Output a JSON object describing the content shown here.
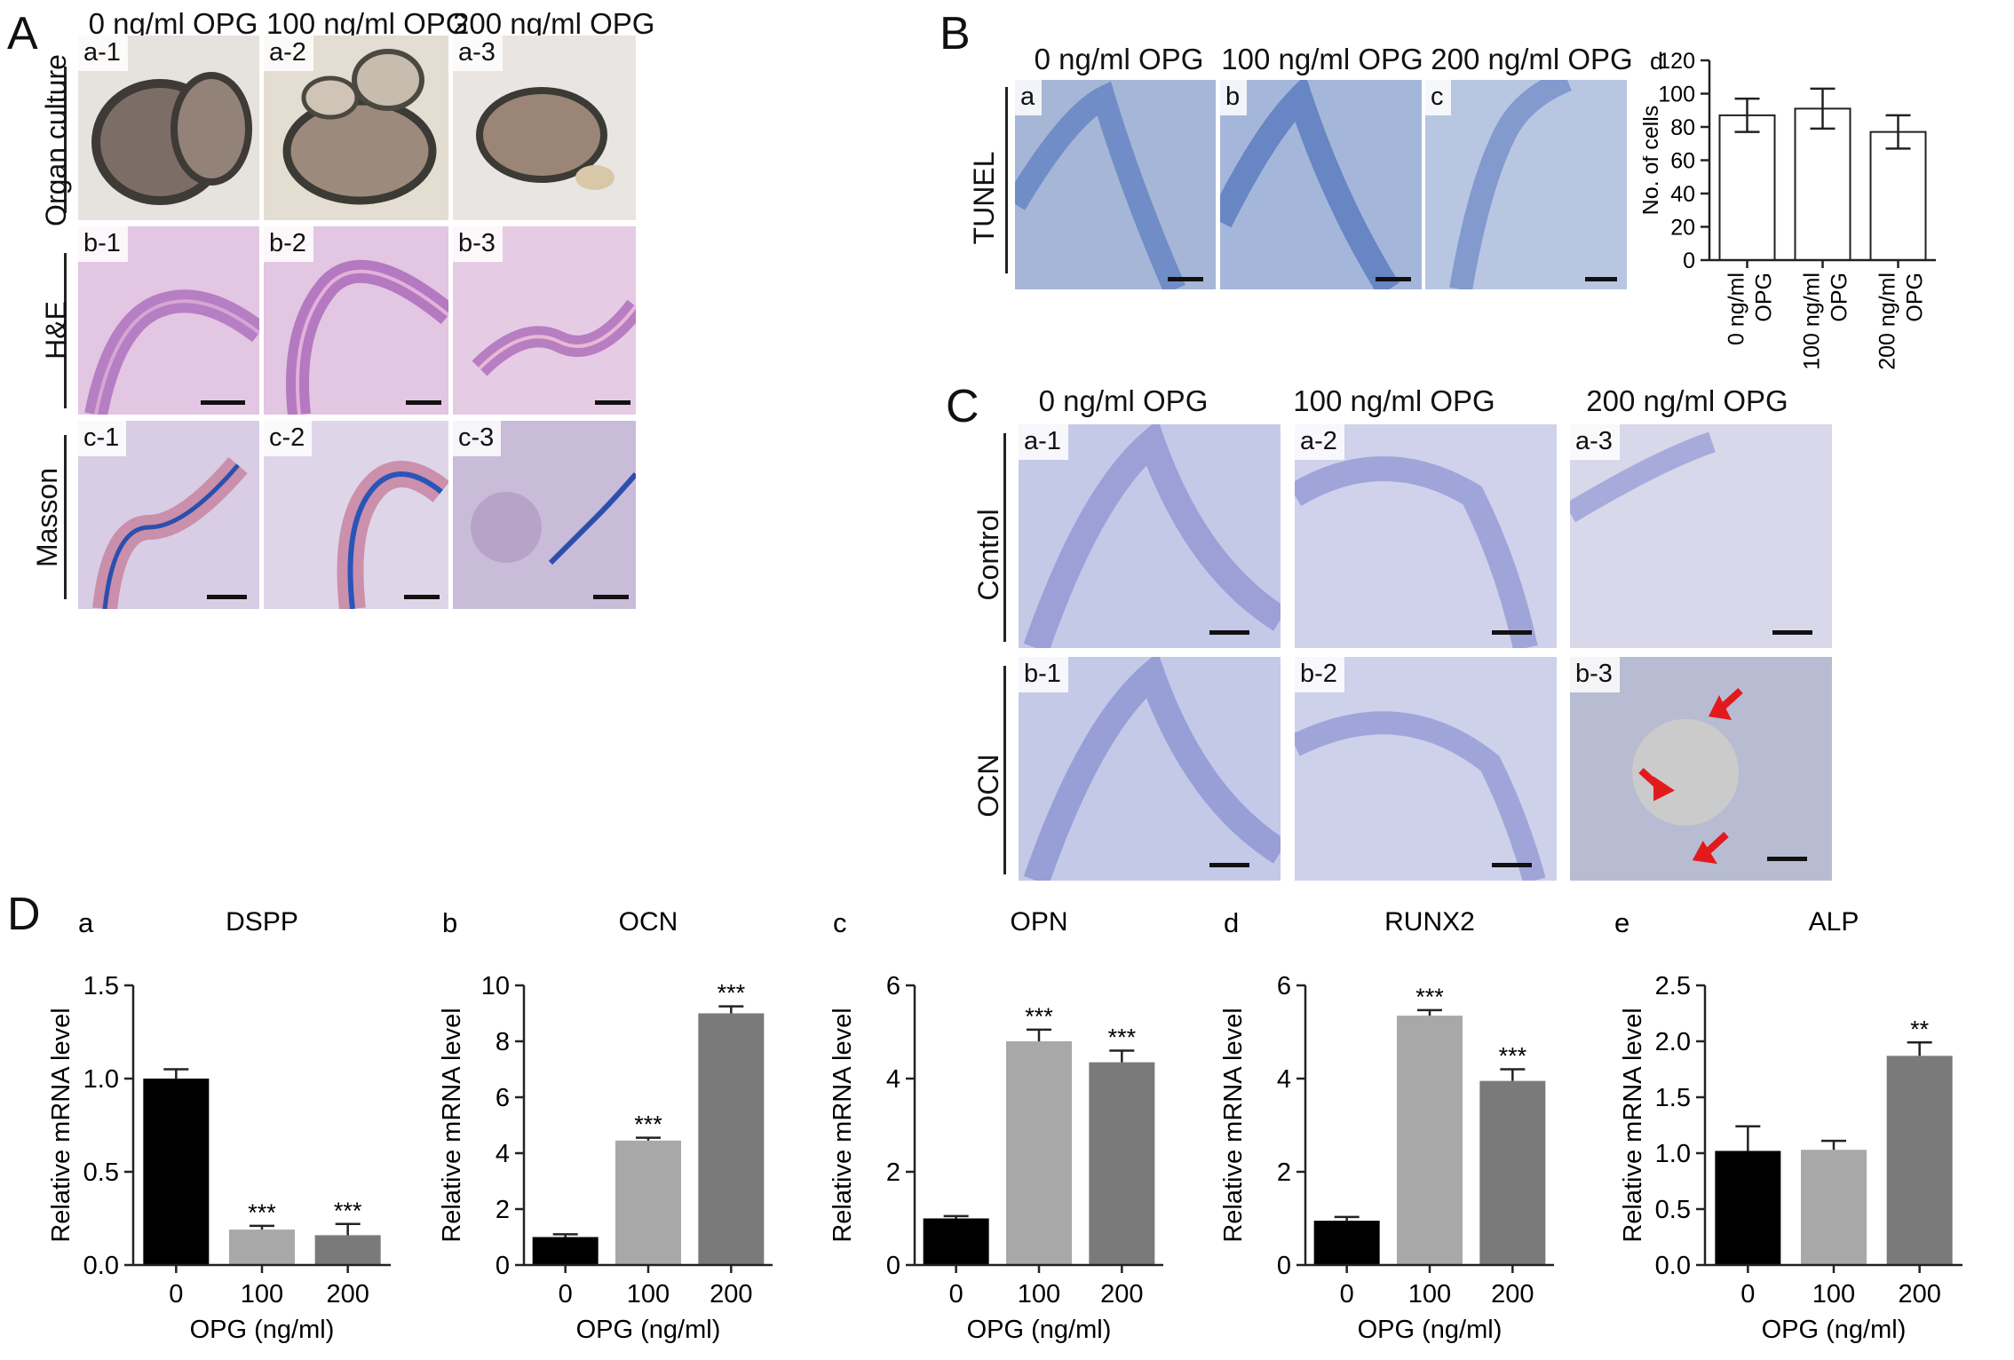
{
  "panels": {
    "A": {
      "label": "A",
      "columns": [
        "0 ng/ml OPG",
        "100 ng/ml OPG",
        "200 ng/ml OPG"
      ],
      "rows": [
        {
          "label": "Organ culture",
          "tags": [
            "a-1",
            "a-2",
            "a-3"
          ]
        },
        {
          "label": "H&E",
          "tags": [
            "b-1",
            "b-2",
            "b-3"
          ]
        },
        {
          "label": "Masson",
          "tags": [
            "c-1",
            "c-2",
            "c-3"
          ]
        }
      ]
    },
    "B": {
      "label": "B",
      "columns": [
        "0 ng/ml OPG",
        "100 ng/ml OPG",
        "200 ng/ml OPG"
      ],
      "row_label": "TUNEL",
      "tags": [
        "a",
        "b",
        "c"
      ]
    },
    "C": {
      "label": "C",
      "columns": [
        "0 ng/ml OPG",
        "100 ng/ml OPG",
        "200 ng/ml OPG"
      ],
      "rows": [
        {
          "label": "Control",
          "tags": [
            "a-1",
            "a-2",
            "a-3"
          ]
        },
        {
          "label": "OCN",
          "tags": [
            "b-1",
            "b-2",
            "b-3"
          ]
        }
      ]
    },
    "D": {
      "label": "D"
    }
  },
  "colors": {
    "tissue_he": "#c48fc6",
    "tissue_masson": "#9b86c0",
    "tissue_ihc": "#9aa2d6",
    "tunel": "#6d8cbf",
    "bar_black": "#000000",
    "bar_light": "#a8a8a8",
    "bar_mid": "#7a7a7a",
    "arrow": "#e31a1c"
  },
  "chart_data": [
    {
      "id": "Bd",
      "tag": "d",
      "type": "bar",
      "categories": [
        "0 ng/ml OPG",
        "100 ng/ml OPG",
        "200 ng/ml OPG"
      ],
      "values": [
        87,
        91,
        77
      ],
      "errors": [
        10,
        12,
        10
      ],
      "ylabel": "No. of cells",
      "ylim": [
        0,
        120
      ],
      "yticks": [
        0,
        20,
        40,
        60,
        80,
        100,
        120
      ],
      "sig": [
        "",
        "",
        ""
      ],
      "colors": [
        "#ffffff",
        "#ffffff",
        "#ffffff"
      ]
    },
    {
      "id": "Da",
      "tag": "a",
      "type": "bar",
      "title": "DSPP",
      "categories": [
        "0",
        "100",
        "200"
      ],
      "values": [
        1.0,
        0.19,
        0.16
      ],
      "errors": [
        0.05,
        0.02,
        0.06
      ],
      "ylabel": "Relative mRNA level",
      "xlabel": "OPG (ng/ml)",
      "ylim": [
        0,
        1.5
      ],
      "yticks": [
        "0.0",
        "0.5",
        "1.0",
        "1.5"
      ],
      "sig": [
        "",
        "***",
        "***"
      ],
      "colors": [
        "#000000",
        "#a8a8a8",
        "#7a7a7a"
      ]
    },
    {
      "id": "Db",
      "tag": "b",
      "type": "bar",
      "title": "OCN",
      "categories": [
        "0",
        "100",
        "200"
      ],
      "values": [
        1.0,
        4.45,
        9.0
      ],
      "errors": [
        0.1,
        0.1,
        0.25
      ],
      "ylabel": "Relative mRNA level",
      "xlabel": "OPG (ng/ml)",
      "ylim": [
        0,
        10
      ],
      "yticks": [
        "0",
        "2",
        "4",
        "6",
        "8",
        "10"
      ],
      "sig": [
        "",
        "***",
        "***"
      ],
      "colors": [
        "#000000",
        "#a8a8a8",
        "#7a7a7a"
      ]
    },
    {
      "id": "Dc",
      "tag": "c",
      "type": "bar",
      "title": "OPN",
      "categories": [
        "0",
        "100",
        "200"
      ],
      "values": [
        1.0,
        4.8,
        4.35
      ],
      "errors": [
        0.05,
        0.25,
        0.25
      ],
      "ylabel": "Relative mRNA level",
      "xlabel": "OPG (ng/ml)",
      "ylim": [
        0,
        6
      ],
      "yticks": [
        "0",
        "2",
        "4",
        "6"
      ],
      "sig": [
        "",
        "***",
        "***"
      ],
      "colors": [
        "#000000",
        "#a8a8a8",
        "#7a7a7a"
      ]
    },
    {
      "id": "Dd",
      "tag": "d",
      "type": "bar",
      "title": "RUNX2",
      "categories": [
        "0",
        "100",
        "200"
      ],
      "values": [
        0.95,
        5.35,
        3.95
      ],
      "errors": [
        0.08,
        0.12,
        0.25
      ],
      "ylabel": "Relative mRNA level",
      "xlabel": "OPG (ng/ml)",
      "ylim": [
        0,
        6
      ],
      "yticks": [
        "0",
        "2",
        "4",
        "6"
      ],
      "sig": [
        "",
        "***",
        "***"
      ],
      "colors": [
        "#000000",
        "#a8a8a8",
        "#7a7a7a"
      ]
    },
    {
      "id": "De",
      "tag": "e",
      "type": "bar",
      "title": "ALP",
      "categories": [
        "0",
        "100",
        "200"
      ],
      "values": [
        1.02,
        1.03,
        1.87
      ],
      "errors": [
        0.22,
        0.08,
        0.12
      ],
      "ylabel": "Relative mRNA level",
      "xlabel": "OPG (ng/ml)",
      "ylim": [
        0,
        2.5
      ],
      "yticks": [
        "0.0",
        "0.5",
        "1.0",
        "1.5",
        "2.0",
        "2.5"
      ],
      "sig": [
        "",
        "",
        "**"
      ],
      "colors": [
        "#000000",
        "#a8a8a8",
        "#7a7a7a"
      ]
    }
  ]
}
